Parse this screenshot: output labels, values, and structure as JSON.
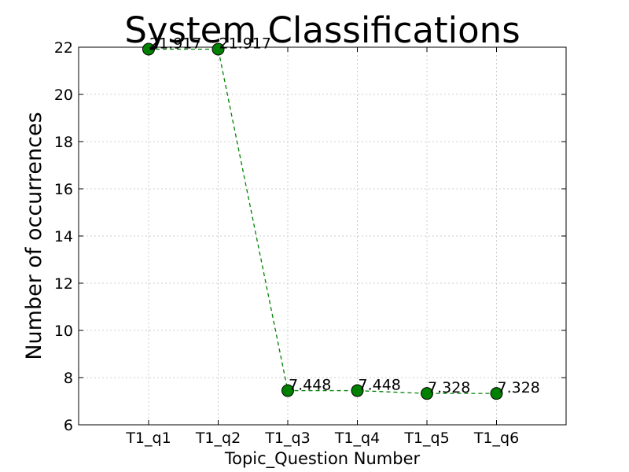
{
  "chart_data": {
    "type": "line",
    "title": "System Classifications",
    "xlabel": "Topic_Question Number",
    "ylabel": "Number of occurrences",
    "categories": [
      "T1_q1",
      "T1_q2",
      "T1_q3",
      "T1_q4",
      "T1_q5",
      "T1_q6"
    ],
    "values": [
      21.917,
      21.917,
      7.448,
      7.448,
      7.328,
      7.328
    ],
    "data_labels": [
      "21.917",
      "21.917",
      "7.448",
      "7.448",
      "7.328",
      "7.328"
    ],
    "ylim": [
      6,
      22
    ],
    "yticks": [
      6,
      8,
      10,
      12,
      14,
      16,
      18,
      20,
      22
    ],
    "grid": true,
    "line_style": "dashed",
    "colors": {
      "series": "#008000",
      "line": "#008000",
      "axes": "#000000",
      "grid": "#cccccc"
    }
  }
}
